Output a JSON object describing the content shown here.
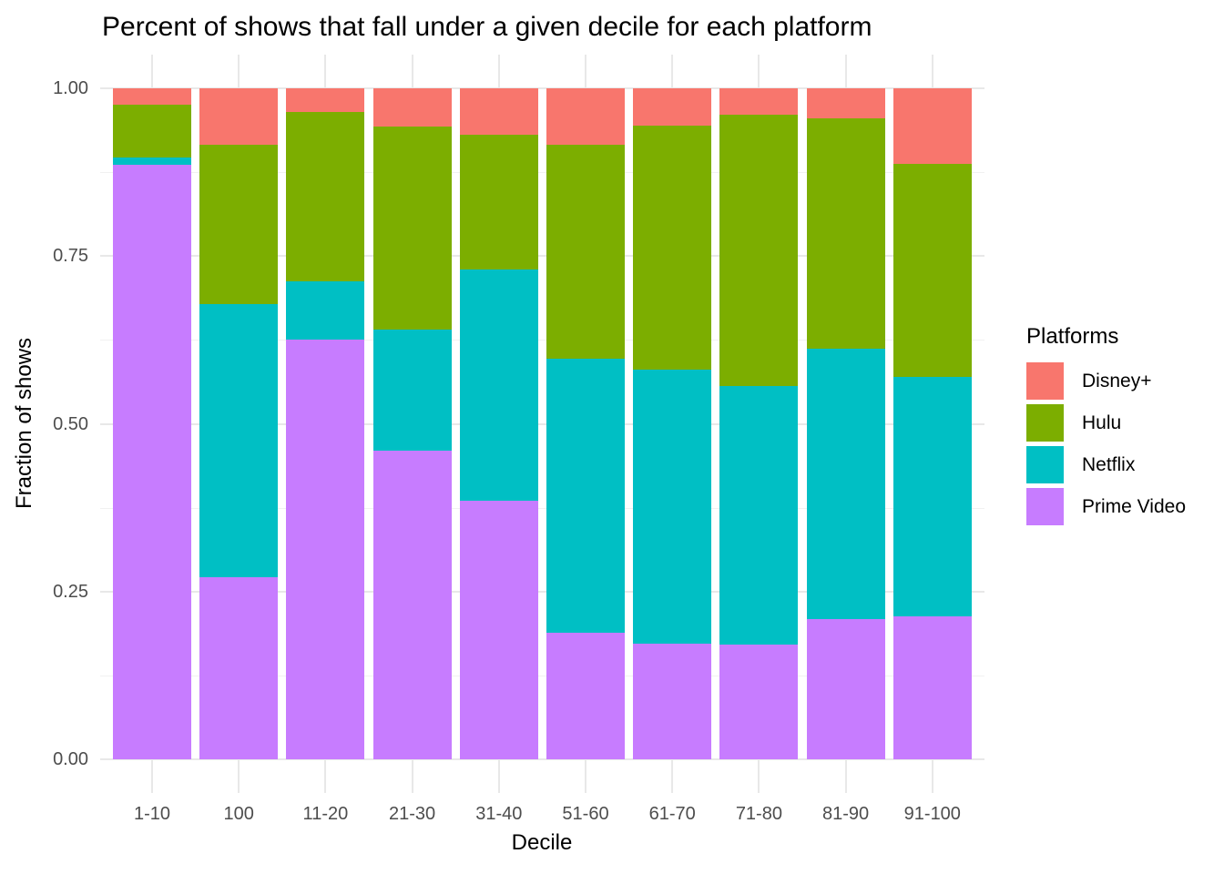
{
  "chart_data": {
    "type": "bar",
    "stacked": true,
    "title": "Percent of shows that fall under a given decile for each platform",
    "xlabel": "Decile",
    "ylabel": "Fraction of shows",
    "ylim": [
      0,
      1
    ],
    "grid": "horizontal major + minor, vertical major per category, light gray on white",
    "legend_position": "right",
    "categories": [
      "1-10",
      "100",
      "11-20",
      "21-30",
      "31-40",
      "51-60",
      "61-70",
      "71-80",
      "81-90",
      "91-100"
    ],
    "y_ticks": [
      {
        "label": "0.00",
        "value": 0
      },
      {
        "label": "0.25",
        "value": 0.25
      },
      {
        "label": "0.50",
        "value": 0.5
      },
      {
        "label": "0.75",
        "value": 0.75
      },
      {
        "label": "1.00",
        "value": 1
      }
    ],
    "y_minor_ticks": [
      0.125,
      0.375,
      0.625,
      0.875
    ],
    "stack_order_bottom_to_top": [
      "Prime Video",
      "Netflix",
      "Hulu",
      "Disney+"
    ],
    "series": [
      {
        "name": "Prime Video",
        "color": "#C77CFF",
        "values": [
          0.886,
          0.271,
          0.625,
          0.46,
          0.385,
          0.189,
          0.172,
          0.171,
          0.209,
          0.213
        ]
      },
      {
        "name": "Netflix",
        "color": "#00BFC4",
        "values": [
          0.011,
          0.407,
          0.087,
          0.18,
          0.345,
          0.408,
          0.409,
          0.385,
          0.403,
          0.357
        ]
      },
      {
        "name": "Hulu",
        "color": "#7CAE00",
        "values": [
          0.079,
          0.238,
          0.253,
          0.303,
          0.201,
          0.319,
          0.363,
          0.405,
          0.343,
          0.317
        ]
      },
      {
        "name": "Disney+",
        "color": "#F8766D",
        "values": [
          0.024,
          0.084,
          0.035,
          0.057,
          0.069,
          0.084,
          0.056,
          0.039,
          0.045,
          0.113
        ]
      }
    ],
    "legend": {
      "title": "Platforms",
      "items": [
        {
          "label": "Disney+",
          "color": "#F8766D"
        },
        {
          "label": "Hulu",
          "color": "#7CAE00"
        },
        {
          "label": "Netflix",
          "color": "#00BFC4"
        },
        {
          "label": "Prime Video",
          "color": "#C77CFF"
        }
      ]
    }
  },
  "colors": {
    "background": "#FFFFFF",
    "axis_text": "#4D4D4D",
    "title_text": "#000000",
    "grid_major": "#E8E8E8",
    "grid_minor": "#F1F1F1"
  }
}
